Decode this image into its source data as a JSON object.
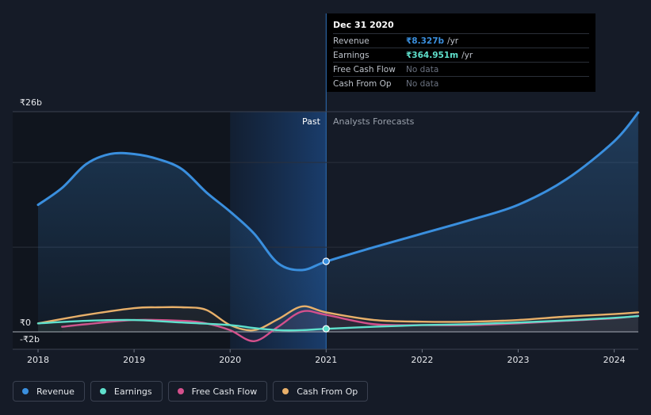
{
  "tooltip": {
    "date": "Dec 31 2020",
    "rows": [
      {
        "label": "Revenue",
        "value": "₹8.327b",
        "unit": "/yr",
        "color": "#3a8fde"
      },
      {
        "label": "Earnings",
        "value": "₹364.951m",
        "unit": "/yr",
        "color": "#5fe0cc"
      },
      {
        "label": "Free Cash Flow",
        "value": "No data"
      },
      {
        "label": "Cash From Op",
        "value": "No data"
      }
    ]
  },
  "regions": {
    "past": "Past",
    "forecast": "Analysts Forecasts"
  },
  "legend": [
    {
      "label": "Revenue",
      "color": "#3a8fde"
    },
    {
      "label": "Earnings",
      "color": "#5fe0cc"
    },
    {
      "label": "Free Cash Flow",
      "color": "#d4508c"
    },
    {
      "label": "Cash From Op",
      "color": "#e8b06a"
    }
  ],
  "chart_data": {
    "type": "line",
    "y_tick_labels": [
      "₹26b",
      "₹0",
      "-₹2b"
    ],
    "x_tick_labels": [
      "2018",
      "2019",
      "2020",
      "2021",
      "2022",
      "2023",
      "2024"
    ],
    "ylim": [
      -2,
      26
    ],
    "xlim": [
      2017.75,
      2024.25
    ],
    "past_end": 2021.0,
    "highlight_start": 2020.0,
    "series": [
      {
        "name": "Revenue",
        "color": "#3a8fde",
        "x": [
          2018.0,
          2018.25,
          2018.5,
          2018.75,
          2019.0,
          2019.25,
          2019.5,
          2019.75,
          2020.0,
          2020.25,
          2020.5,
          2020.75,
          2021.0,
          2021.5,
          2022.0,
          2022.5,
          2023.0,
          2023.5,
          2024.0,
          2024.25
        ],
        "y": [
          15.0,
          17.0,
          19.8,
          21.0,
          21.0,
          20.4,
          19.2,
          16.5,
          14.2,
          11.6,
          8.1,
          7.3,
          8.3,
          10.0,
          11.6,
          13.2,
          15.0,
          18.0,
          22.5,
          25.9
        ]
      },
      {
        "name": "Earnings",
        "color": "#5fe0cc",
        "x": [
          2018.0,
          2018.5,
          2019.0,
          2019.5,
          2020.0,
          2020.25,
          2020.5,
          2020.75,
          2021.0,
          2021.5,
          2022.0,
          2022.5,
          2023.0,
          2023.5,
          2024.0,
          2024.25
        ],
        "y": [
          1.0,
          1.3,
          1.4,
          1.1,
          0.8,
          0.45,
          0.2,
          0.2,
          0.36,
          0.6,
          0.8,
          0.9,
          1.1,
          1.35,
          1.65,
          1.85
        ]
      },
      {
        "name": "Free Cash Flow",
        "color": "#d4508c",
        "x": [
          2018.25,
          2018.5,
          2019.0,
          2019.5,
          2019.75,
          2020.0,
          2020.25,
          2020.5,
          2020.75,
          2021.0,
          2021.5,
          2022.0,
          2022.5,
          2023.0,
          2023.5,
          2024.0,
          2024.25
        ],
        "y": [
          0.6,
          0.9,
          1.4,
          1.3,
          1.0,
          0.2,
          -1.1,
          0.6,
          2.4,
          2.0,
          0.9,
          0.8,
          0.8,
          1.0,
          1.3,
          1.6,
          1.9
        ]
      },
      {
        "name": "Cash From Op",
        "color": "#e8b06a",
        "x": [
          2018.0,
          2018.5,
          2019.0,
          2019.25,
          2019.5,
          2019.75,
          2020.0,
          2020.25,
          2020.5,
          2020.75,
          2021.0,
          2021.5,
          2022.0,
          2022.5,
          2023.0,
          2023.5,
          2024.0,
          2024.25
        ],
        "y": [
          1.0,
          2.0,
          2.8,
          2.9,
          2.9,
          2.6,
          0.8,
          0.2,
          1.5,
          3.0,
          2.3,
          1.4,
          1.2,
          1.2,
          1.4,
          1.8,
          2.1,
          2.3
        ]
      }
    ],
    "markers": [
      {
        "series": "Revenue",
        "x": 2021.0,
        "y": 8.327
      },
      {
        "series": "Earnings",
        "x": 2021.0,
        "y": 0.365
      }
    ]
  }
}
